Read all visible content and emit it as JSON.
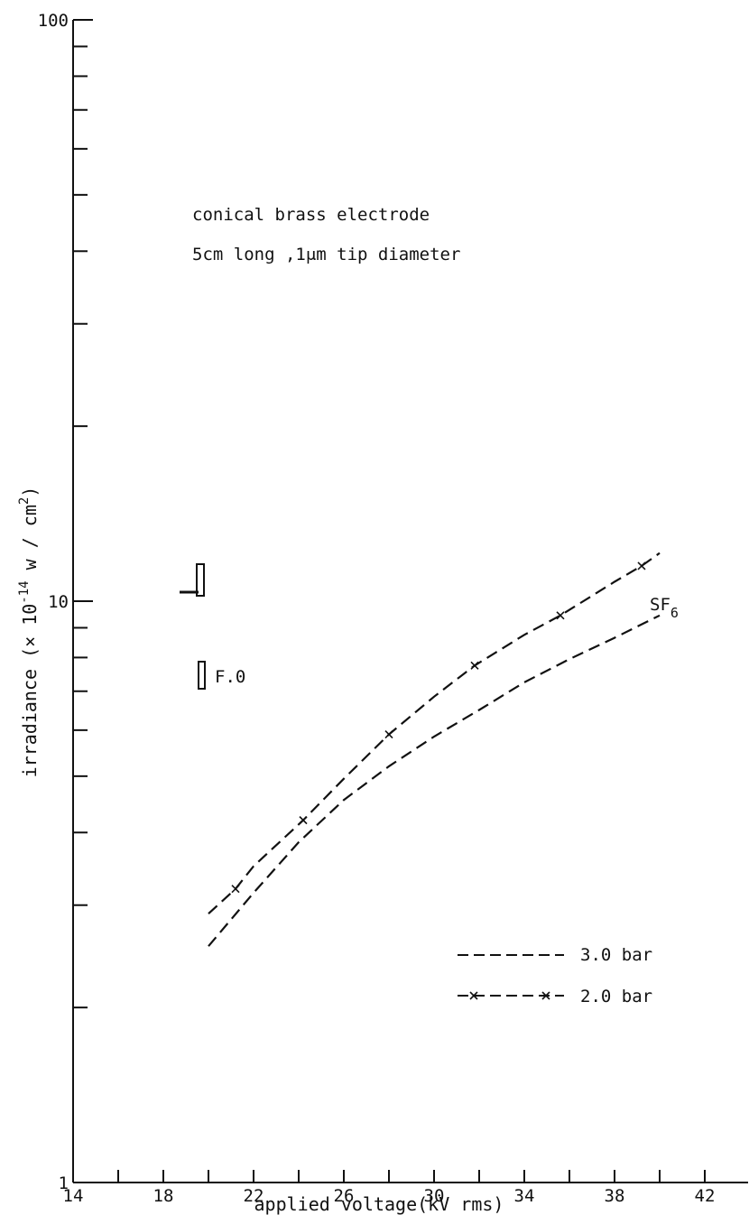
{
  "chart_data": {
    "type": "line",
    "title": "",
    "xlabel": "applied voltage(kV rms)",
    "ylabel_main": "irradiance (× 10",
    "ylabel_exp": "-14",
    "ylabel_unit": " w / cm",
    "ylabel_unit_exp": "2",
    "ylabel_close": ")",
    "xlim": [
      14,
      44
    ],
    "ylim": [
      1,
      100
    ],
    "yscale": "log",
    "x_ticks": [
      14,
      16,
      18,
      20,
      22,
      24,
      26,
      28,
      30,
      32,
      34,
      36,
      38,
      40,
      42
    ],
    "x_tick_labels": [
      "14",
      "18",
      "22",
      "26",
      "30",
      "34",
      "38",
      "42"
    ],
    "y_tick_labels": [
      "1",
      "10",
      "100"
    ],
    "annotations": [
      "conical  brass   electrode",
      "5cm long ,1μm  tip diameter",
      "F.0",
      "SF",
      "6"
    ],
    "series": [
      {
        "name": "3.0 bar",
        "style": "dashed",
        "markers": false,
        "x": [
          20,
          22,
          24,
          26,
          28,
          30,
          32,
          34,
          36,
          38,
          40
        ],
        "y": [
          2.55,
          3.15,
          3.85,
          4.55,
          5.2,
          5.85,
          6.5,
          7.25,
          7.95,
          8.65,
          9.45
        ]
      },
      {
        "name": "2.0 bar",
        "style": "dashed-x",
        "markers": true,
        "x": [
          20,
          21.2,
          22,
          24.2,
          26,
          28,
          30,
          31.8,
          34,
          35.6,
          38,
          39.2,
          40
        ],
        "y": [
          2.9,
          3.2,
          3.5,
          4.2,
          4.95,
          5.9,
          6.85,
          7.75,
          8.75,
          9.45,
          10.8,
          11.5,
          12.1
        ],
        "marker_x": [
          21.2,
          24.2,
          28,
          31.8,
          35.6,
          39.2
        ]
      }
    ],
    "fo_marker_y": [
      10,
      7.1
    ],
    "grid": false,
    "legend": "bottom-right"
  }
}
